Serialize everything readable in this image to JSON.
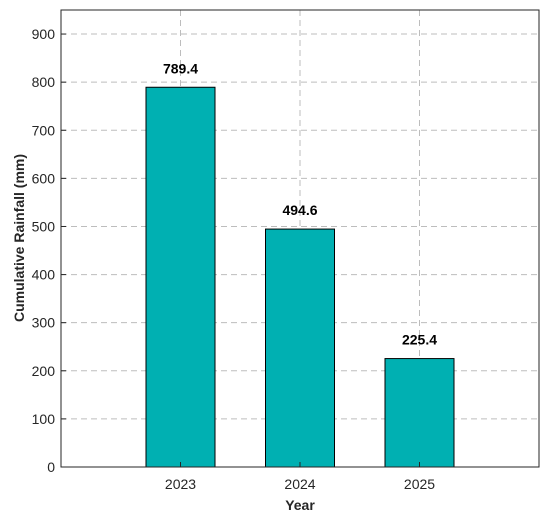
{
  "chart_data": {
    "type": "bar",
    "categories": [
      "2023",
      "2024",
      "2025"
    ],
    "values": [
      789.4,
      494.6,
      225.4
    ],
    "data_labels": [
      "789.4",
      "494.6",
      "225.4"
    ],
    "title": "",
    "xlabel": "Year",
    "ylabel": "Cumulative Rainfall (mm)",
    "ylim": [
      0,
      950
    ],
    "yticks": [
      0,
      100,
      200,
      300,
      400,
      500,
      600,
      700,
      800,
      900
    ],
    "grid": true,
    "bar_color": "#00b0b2",
    "bar_edge_color": "#000000"
  }
}
